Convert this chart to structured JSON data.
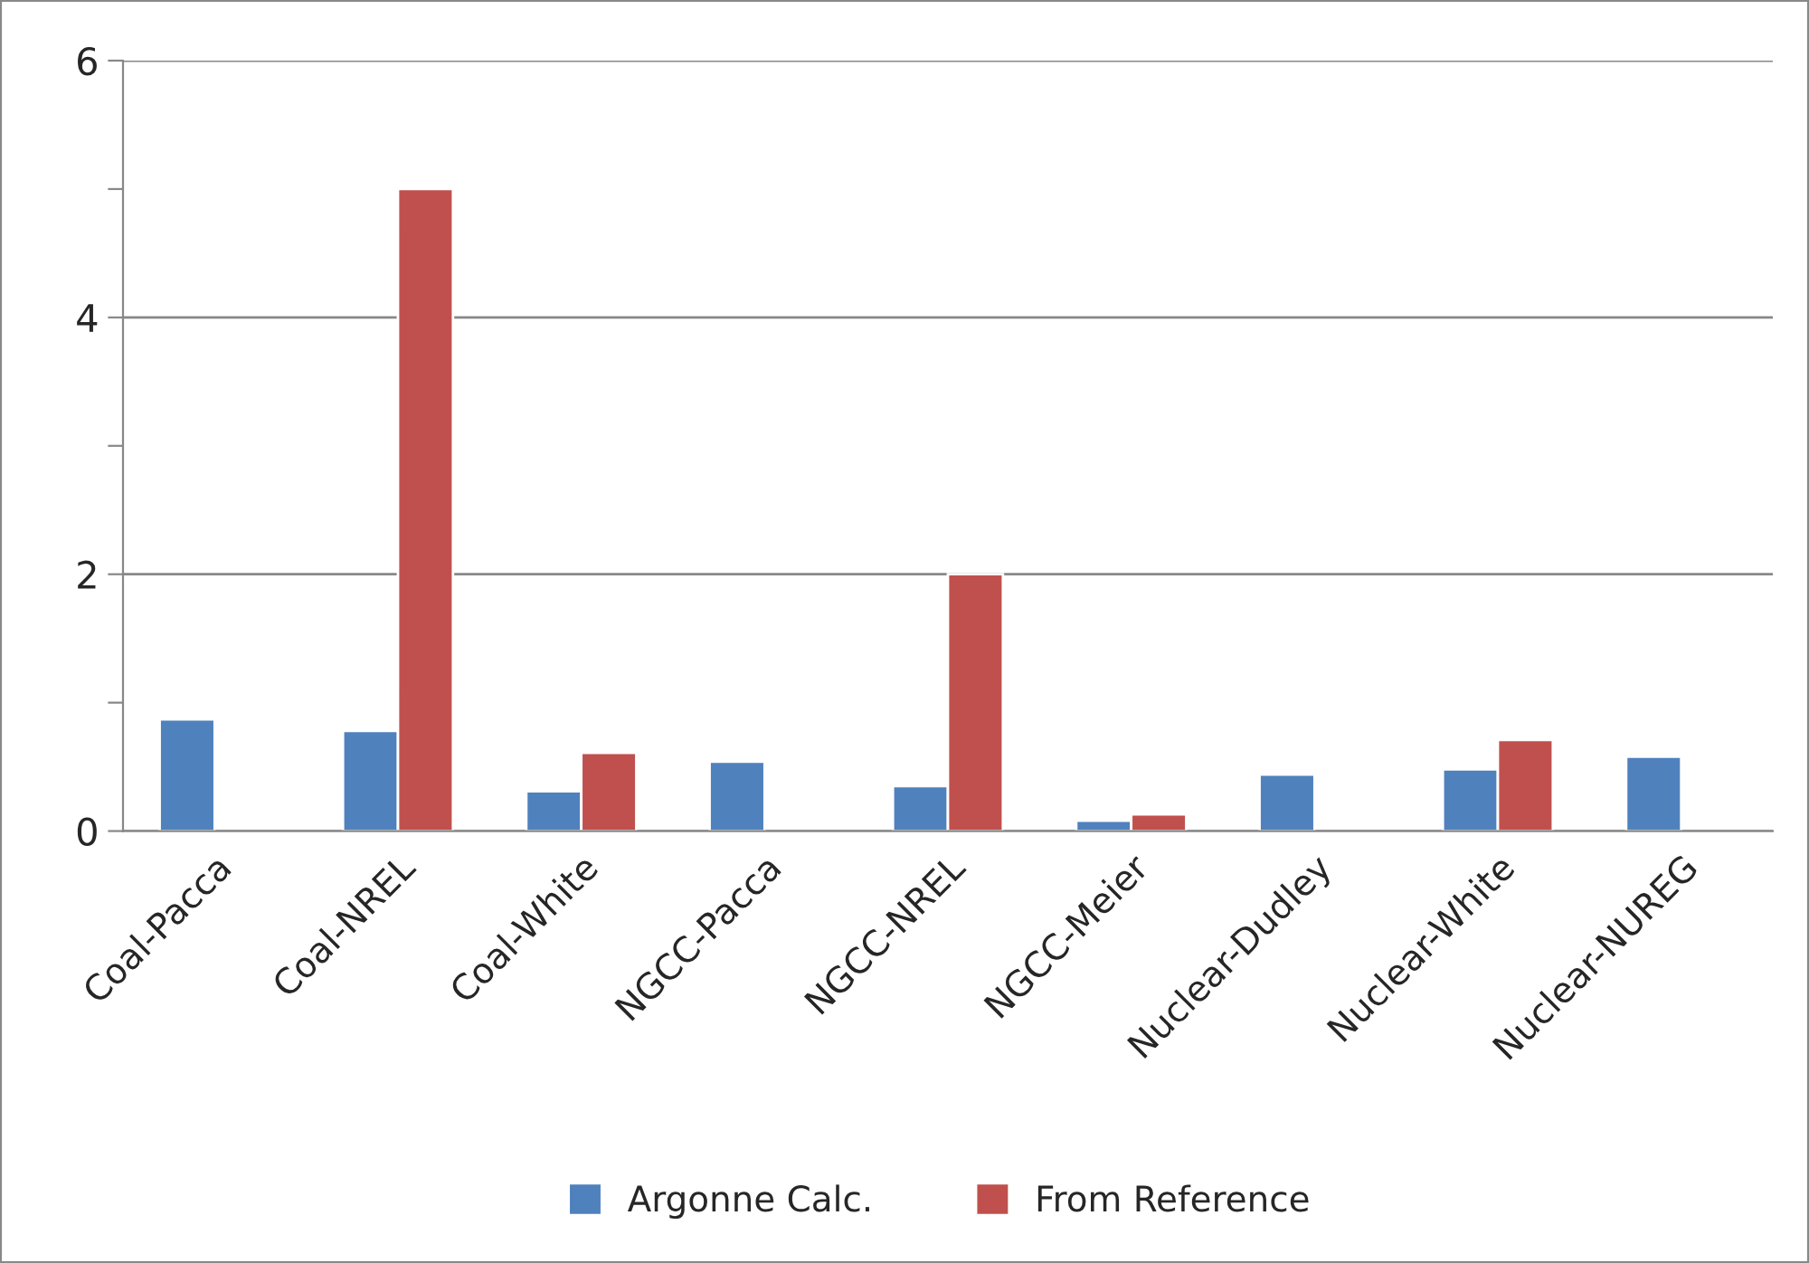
{
  "chart_data": {
    "type": "bar",
    "categories": [
      "Coal-Pacca",
      "Coal-NREL",
      "Coal-White",
      "NGCC-Pacca",
      "NGCC-NREL",
      "NGCC-Meier",
      "Nuclear-Dudley",
      "Nuclear-White",
      "Nuclear-NUREG"
    ],
    "series": [
      {
        "name": "Argonne Calc.",
        "color": "#4f81bd",
        "values": [
          0.87,
          0.78,
          0.31,
          0.54,
          0.35,
          0.08,
          0.44,
          0.48,
          0.58
        ]
      },
      {
        "name": "From Reference",
        "color": "#c0504d",
        "values": [
          null,
          5.0,
          0.61,
          null,
          2.0,
          0.13,
          null,
          0.71,
          null
        ]
      }
    ],
    "ylim": [
      0,
      6
    ],
    "yticks": [
      0,
      {
        "value": 1,
        "label": null
      },
      2,
      {
        "value": 3,
        "label": null
      },
      4,
      {
        "value": 5,
        "label": null
      },
      6
    ],
    "grid": "y",
    "legend": "bottom"
  }
}
